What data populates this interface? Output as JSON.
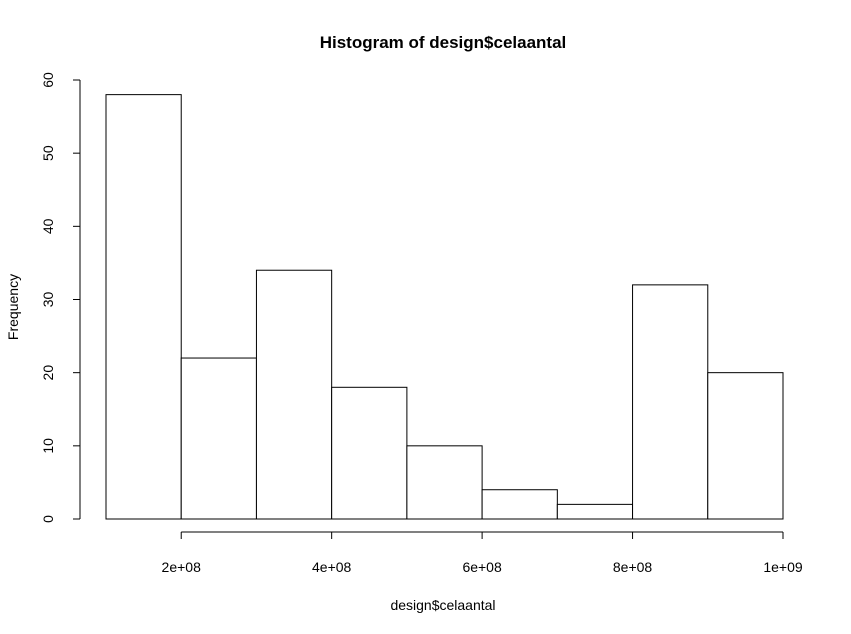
{
  "chart_data": {
    "type": "bar",
    "title": "Histogram of design$celaantal",
    "xlabel": "design$celaantal",
    "ylabel": "Frequency",
    "bins": [
      {
        "x0": 100000000,
        "x1": 200000000,
        "count": 58
      },
      {
        "x0": 200000000,
        "x1": 300000000,
        "count": 22
      },
      {
        "x0": 300000000,
        "x1": 400000000,
        "count": 34
      },
      {
        "x0": 400000000,
        "x1": 500000000,
        "count": 18
      },
      {
        "x0": 500000000,
        "x1": 600000000,
        "count": 10
      },
      {
        "x0": 600000000,
        "x1": 700000000,
        "count": 4
      },
      {
        "x0": 700000000,
        "x1": 800000000,
        "count": 2
      },
      {
        "x0": 800000000,
        "x1": 900000000,
        "count": 32
      },
      {
        "x0": 900000000,
        "x1": 1000000000,
        "count": 20
      }
    ],
    "xlim": [
      100000000,
      1000000000
    ],
    "ylim": [
      0,
      60
    ],
    "x_ticks": [
      {
        "value": 200000000,
        "label": "2e+08"
      },
      {
        "value": 400000000,
        "label": "4e+08"
      },
      {
        "value": 600000000,
        "label": "6e+08"
      },
      {
        "value": 800000000,
        "label": "8e+08"
      },
      {
        "value": 1000000000,
        "label": "1e+09"
      }
    ],
    "y_ticks": [
      {
        "value": 0,
        "label": "0"
      },
      {
        "value": 10,
        "label": "10"
      },
      {
        "value": 20,
        "label": "20"
      },
      {
        "value": 30,
        "label": "30"
      },
      {
        "value": 40,
        "label": "40"
      },
      {
        "value": 50,
        "label": "50"
      },
      {
        "value": 60,
        "label": "60"
      }
    ],
    "grid": false,
    "bar_fill": "#ffffff",
    "bar_stroke": "#000000"
  }
}
